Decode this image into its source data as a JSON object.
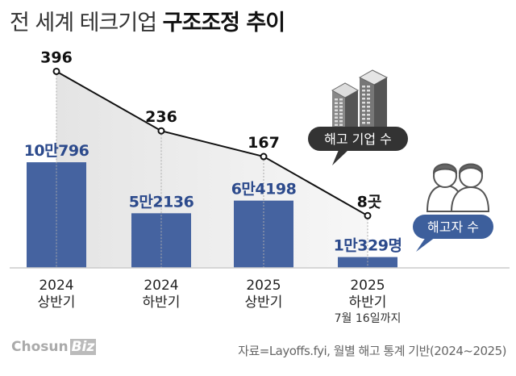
{
  "title_light": "전 세계 테크기업",
  "title_bold": "구조조정 추이",
  "chart_data": {
    "type": "bar+line",
    "categories": [
      [
        "2024",
        "상반기",
        ""
      ],
      [
        "2024",
        "하반기",
        ""
      ],
      [
        "2025",
        "상반기",
        ""
      ],
      [
        "2025",
        "하반기",
        "7월 16일까지"
      ]
    ],
    "series": [
      {
        "name": "해고자 수",
        "type": "bar",
        "values": [
          100796,
          52136,
          64198,
          10329
        ],
        "labels": [
          "10만796",
          "5만2136",
          "6만4198",
          "1만329명"
        ],
        "color": "#4563a0"
      },
      {
        "name": "해고 기업 수",
        "type": "line",
        "values": [
          396,
          236,
          167,
          8
        ],
        "labels": [
          "396",
          "236",
          "167",
          "8곳"
        ],
        "color": "#111111"
      }
    ]
  },
  "legend": {
    "companies": "해고 기업 수",
    "workers": "해고자 수",
    "companies_color": "#333333",
    "workers_color": "#3d5f9c",
    "companies_icon": "buildings-icon",
    "workers_icon": "people-icon"
  },
  "logo": {
    "a": "Chosun",
    "b": "Biz"
  },
  "source": "자료=Layoffs.fyi, 월별 해고 통계 기반(2024~2025)"
}
